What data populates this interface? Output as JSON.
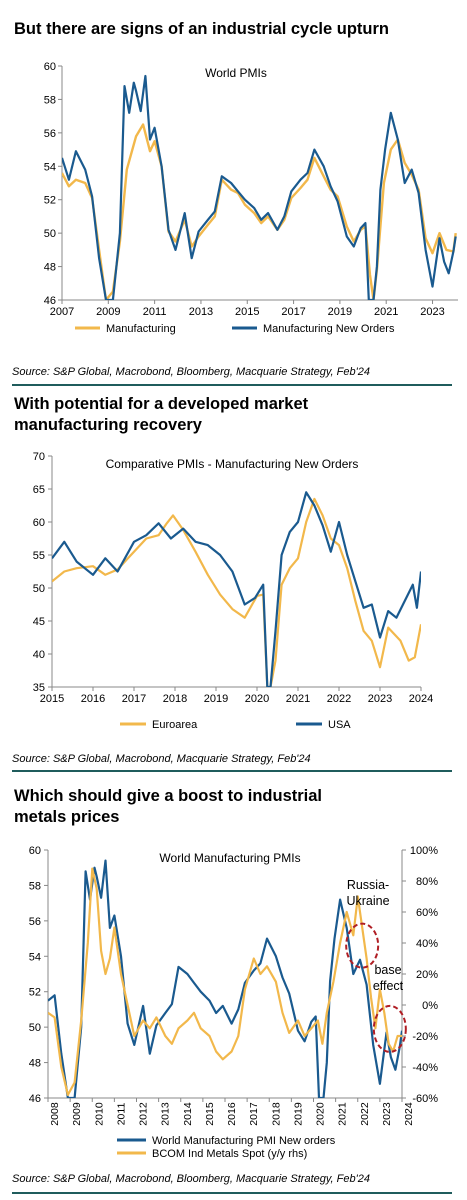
{
  "panels": [
    {
      "heading": "But there are signs of an industrial cycle upturn",
      "source": "Source: S&P Global, Macrobond, Bloomberg, Macquarie Strategy, Feb'24"
    },
    {
      "heading": "With potential for a developed market manufacturing recovery",
      "source": "Source: S&P Global, Macrobond, Macquarie Strategy, Feb'24"
    },
    {
      "heading": "Which should give a boost to industrial metals prices",
      "source": "Source: S&P Global, Macrobond, Bloomberg, Macquarie Strategy, Feb'24"
    }
  ],
  "colors": {
    "gold": "#f2b84b",
    "blue": "#1a5a8f",
    "annotation_red": "#b01e24",
    "rule": "#1f5c5c"
  },
  "chart_data": [
    {
      "type": "line",
      "title": "World PMIs",
      "x_ticks": [
        "2007",
        "2009",
        "2011",
        "2013",
        "2015",
        "2017",
        "2019",
        "2021",
        "2023"
      ],
      "xlim": [
        2007,
        2024.1
      ],
      "ylim": [
        46,
        60
      ],
      "y_ticks": [
        46,
        48,
        50,
        52,
        54,
        56,
        58,
        60
      ],
      "legend_position": "bottom",
      "series": [
        {
          "name": "Manufacturing",
          "color": "#f2b84b",
          "x": [
            2007,
            2007.3,
            2007.6,
            2008,
            2008.3,
            2008.6,
            2008.9,
            2009.2,
            2009.5,
            2009.8,
            2010.2,
            2010.5,
            2010.8,
            2011,
            2011.3,
            2011.6,
            2011.9,
            2012.3,
            2012.6,
            2012.9,
            2013.3,
            2013.6,
            2013.9,
            2014.3,
            2014.6,
            2014.9,
            2015.3,
            2015.6,
            2015.9,
            2016.3,
            2016.6,
            2016.9,
            2017.3,
            2017.6,
            2017.9,
            2018.3,
            2018.6,
            2018.9,
            2019.3,
            2019.6,
            2019.9,
            2020.1,
            2020.3,
            2020.45,
            2020.6,
            2020.9,
            2021.2,
            2021.5,
            2021.8,
            2022.1,
            2022.4,
            2022.7,
            2023,
            2023.3,
            2023.6,
            2023.9,
            2024
          ],
          "y": [
            53.6,
            52.8,
            53.2,
            53.0,
            52.1,
            49.0,
            46.0,
            46.5,
            49.5,
            53.8,
            55.8,
            56.5,
            54.9,
            55.5,
            54.0,
            50.1,
            49.5,
            50.8,
            49.2,
            49.8,
            50.5,
            51.0,
            53.2,
            52.6,
            52.4,
            51.7,
            51.2,
            50.6,
            51.0,
            50.2,
            50.8,
            52.1,
            52.7,
            53.2,
            54.5,
            53.4,
            52.6,
            52.2,
            50.4,
            49.5,
            50.2,
            50.4,
            47.5,
            46.0,
            47.8,
            53.0,
            55.0,
            55.6,
            54.2,
            53.5,
            52.6,
            49.7,
            48.8,
            50.0,
            49.0,
            48.9,
            50.0
          ]
        },
        {
          "name": "Manufacturing New Orders",
          "color": "#1a5a8f",
          "x": [
            2007,
            2007.3,
            2007.6,
            2008,
            2008.3,
            2008.6,
            2008.9,
            2009.2,
            2009.5,
            2009.7,
            2009.9,
            2010.1,
            2010.2,
            2010.4,
            2010.6,
            2010.8,
            2011,
            2011.3,
            2011.6,
            2011.9,
            2012.3,
            2012.6,
            2012.9,
            2013.3,
            2013.6,
            2013.9,
            2014.3,
            2014.6,
            2014.9,
            2015.3,
            2015.6,
            2015.9,
            2016.3,
            2016.6,
            2016.9,
            2017.3,
            2017.6,
            2017.9,
            2018.3,
            2018.6,
            2018.9,
            2019.3,
            2019.6,
            2019.9,
            2020.1,
            2020.25,
            2020.45,
            2020.6,
            2020.75,
            2020.95,
            2021.2,
            2021.5,
            2021.8,
            2022.1,
            2022.4,
            2022.7,
            2023,
            2023.3,
            2023.5,
            2023.7,
            2023.9,
            2024
          ],
          "y": [
            54.5,
            53.2,
            54.9,
            53.8,
            52.2,
            48.5,
            46.0,
            46.0,
            50.0,
            58.8,
            57.2,
            59.0,
            58.5,
            57.3,
            59.4,
            55.6,
            56.3,
            54.0,
            50.2,
            49.0,
            51.2,
            48.5,
            50.1,
            50.8,
            51.3,
            53.4,
            53.0,
            52.5,
            52.0,
            51.5,
            50.8,
            51.2,
            50.2,
            51.0,
            52.5,
            53.2,
            53.6,
            55.0,
            54.0,
            52.8,
            51.9,
            49.8,
            49.2,
            50.3,
            50.6,
            46.0,
            46.0,
            48.0,
            52.6,
            55.0,
            57.2,
            55.6,
            53.0,
            53.8,
            52.4,
            49.0,
            46.8,
            49.7,
            48.3,
            47.6,
            48.9,
            49.8
          ]
        }
      ]
    },
    {
      "type": "line",
      "title": "Comparative PMIs - Manufacturing New Orders",
      "x_ticks": [
        "2015",
        "2016",
        "2017",
        "2018",
        "2019",
        "2020",
        "2021",
        "2022",
        "2023",
        "2024"
      ],
      "xlim": [
        2015,
        2024
      ],
      "ylim": [
        35,
        70
      ],
      "y_ticks": [
        35,
        40,
        45,
        50,
        55,
        60,
        65,
        70
      ],
      "legend_position": "bottom",
      "series": [
        {
          "name": "Euroarea",
          "color": "#f2b84b",
          "x": [
            2015,
            2015.3,
            2015.6,
            2016,
            2016.3,
            2016.6,
            2017,
            2017.3,
            2017.6,
            2017.8,
            2017.95,
            2018.2,
            2018.5,
            2018.8,
            2019.1,
            2019.4,
            2019.7,
            2020,
            2020.15,
            2020.25,
            2020.33,
            2020.45,
            2020.6,
            2020.8,
            2021,
            2021.2,
            2021.4,
            2021.6,
            2021.8,
            2022,
            2022.2,
            2022.4,
            2022.6,
            2022.8,
            2023,
            2023.2,
            2023.5,
            2023.7,
            2023.85,
            2024
          ],
          "y": [
            51.0,
            52.5,
            53.0,
            53.3,
            52.0,
            52.8,
            55.5,
            57.5,
            58.0,
            59.8,
            61.0,
            58.8,
            55.5,
            52.0,
            49.0,
            46.8,
            45.5,
            48.8,
            49.0,
            35.0,
            35.0,
            39.0,
            50.5,
            53.0,
            54.5,
            60.0,
            63.5,
            61.0,
            57.5,
            56.5,
            53.0,
            48.0,
            43.5,
            42.0,
            38.0,
            44.0,
            42.0,
            39.0,
            39.5,
            44.5
          ]
        },
        {
          "name": "USA",
          "color": "#1a5a8f",
          "x": [
            2015,
            2015.3,
            2015.6,
            2016,
            2016.3,
            2016.6,
            2017,
            2017.3,
            2017.6,
            2017.9,
            2018.2,
            2018.5,
            2018.8,
            2019.1,
            2019.4,
            2019.7,
            2019.95,
            2020.15,
            2020.25,
            2020.33,
            2020.45,
            2020.6,
            2020.8,
            2021,
            2021.2,
            2021.4,
            2021.6,
            2021.8,
            2022,
            2022.2,
            2022.4,
            2022.6,
            2022.8,
            2023,
            2023.2,
            2023.4,
            2023.6,
            2023.8,
            2023.9,
            2024
          ],
          "y": [
            54.5,
            57.0,
            54.0,
            52.0,
            54.5,
            52.5,
            57.0,
            58.0,
            59.8,
            57.5,
            59.0,
            57.0,
            56.5,
            55.0,
            52.5,
            47.5,
            48.5,
            50.5,
            35.0,
            35.0,
            43.5,
            55.0,
            58.5,
            60.0,
            64.5,
            62.5,
            59.5,
            55.5,
            60.0,
            55.0,
            51.0,
            47.0,
            47.5,
            42.5,
            46.5,
            45.5,
            48.0,
            50.5,
            47.0,
            52.5
          ]
        }
      ]
    },
    {
      "type": "line",
      "title": "World Manufacturing PMIs",
      "x_ticks": [
        "2008",
        "2009",
        "2010",
        "2011",
        "2012",
        "2013",
        "2014",
        "2015",
        "2016",
        "2017",
        "2018",
        "2019",
        "2020",
        "2021",
        "2022",
        "2023",
        "2024"
      ],
      "xlim": [
        2008,
        2024
      ],
      "ylim": [
        46,
        60
      ],
      "y_ticks": [
        46,
        48,
        50,
        52,
        54,
        56,
        58,
        60
      ],
      "y2lim": [
        -60,
        100
      ],
      "y2_ticks": [
        "-60%",
        "-40%",
        "-20%",
        "0%",
        "20%",
        "40%",
        "60%",
        "80%",
        "100%"
      ],
      "legend_position": "bottom",
      "annotations": [
        "Russia-\nUkraine",
        "base\neffect"
      ],
      "series": [
        {
          "name": "World Manufacturing PMI New orders",
          "color": "#1a5a8f",
          "axis": "left",
          "x": [
            2008,
            2008.3,
            2008.6,
            2008.9,
            2009.2,
            2009.5,
            2009.7,
            2009.9,
            2010.1,
            2010.2,
            2010.4,
            2010.6,
            2010.8,
            2011,
            2011.3,
            2011.6,
            2011.9,
            2012.3,
            2012.6,
            2012.9,
            2013.3,
            2013.6,
            2013.9,
            2014.3,
            2014.6,
            2014.9,
            2015.3,
            2015.6,
            2015.9,
            2016.3,
            2016.6,
            2016.9,
            2017.3,
            2017.6,
            2017.9,
            2018.3,
            2018.6,
            2018.9,
            2019.3,
            2019.6,
            2019.9,
            2020.1,
            2020.25,
            2020.45,
            2020.6,
            2020.75,
            2020.95,
            2021.2,
            2021.5,
            2021.8,
            2022.1,
            2022.4,
            2022.7,
            2023,
            2023.3,
            2023.5,
            2023.7,
            2023.9,
            2024
          ],
          "y": [
            51.5,
            51.8,
            48.5,
            46.0,
            46.0,
            50.0,
            58.8,
            57.2,
            59.0,
            58.5,
            57.3,
            59.4,
            55.6,
            56.3,
            54.0,
            50.2,
            49.0,
            51.2,
            48.5,
            50.1,
            50.8,
            51.3,
            53.4,
            53.0,
            52.5,
            52.0,
            51.5,
            50.8,
            51.2,
            50.2,
            51.0,
            52.5,
            53.2,
            53.6,
            55.0,
            54.0,
            52.8,
            51.9,
            49.8,
            49.2,
            50.3,
            50.6,
            46.0,
            46.0,
            48.0,
            52.6,
            55.0,
            57.2,
            55.6,
            53.0,
            53.8,
            52.4,
            49.0,
            46.8,
            49.7,
            48.3,
            47.6,
            48.9,
            49.8
          ]
        },
        {
          "name": "BCOM Ind Metals Spot (y/y rhs)",
          "color": "#f2b84b",
          "axis": "right",
          "x": [
            2008,
            2008.3,
            2008.6,
            2008.9,
            2009.2,
            2009.5,
            2009.8,
            2010.0,
            2010.2,
            2010.4,
            2010.6,
            2010.8,
            2011.0,
            2011.3,
            2011.6,
            2011.9,
            2012.3,
            2012.6,
            2012.9,
            2013.3,
            2013.6,
            2013.9,
            2014.3,
            2014.6,
            2014.9,
            2015.3,
            2015.6,
            2015.9,
            2016.3,
            2016.6,
            2016.9,
            2017.3,
            2017.6,
            2017.9,
            2018.3,
            2018.6,
            2018.9,
            2019.3,
            2019.6,
            2019.9,
            2020.2,
            2020.4,
            2020.6,
            2020.9,
            2021.2,
            2021.5,
            2021.8,
            2022.0,
            2022.2,
            2022.4,
            2022.6,
            2022.8,
            2023.0,
            2023.2,
            2023.4,
            2023.6,
            2023.8,
            2024
          ],
          "y": [
            -5,
            -8,
            -40,
            -58,
            -50,
            -10,
            40,
            88,
            75,
            35,
            20,
            30,
            50,
            20,
            0,
            -20,
            -10,
            -15,
            -8,
            -20,
            -25,
            -15,
            -10,
            -5,
            -15,
            -20,
            -30,
            -35,
            -30,
            -20,
            10,
            30,
            20,
            25,
            15,
            -5,
            -18,
            -10,
            -20,
            -15,
            -10,
            -25,
            -5,
            15,
            40,
            60,
            45,
            70,
            50,
            30,
            5,
            -15,
            10,
            -5,
            -25,
            -30,
            -20,
            -20
          ]
        }
      ]
    }
  ]
}
